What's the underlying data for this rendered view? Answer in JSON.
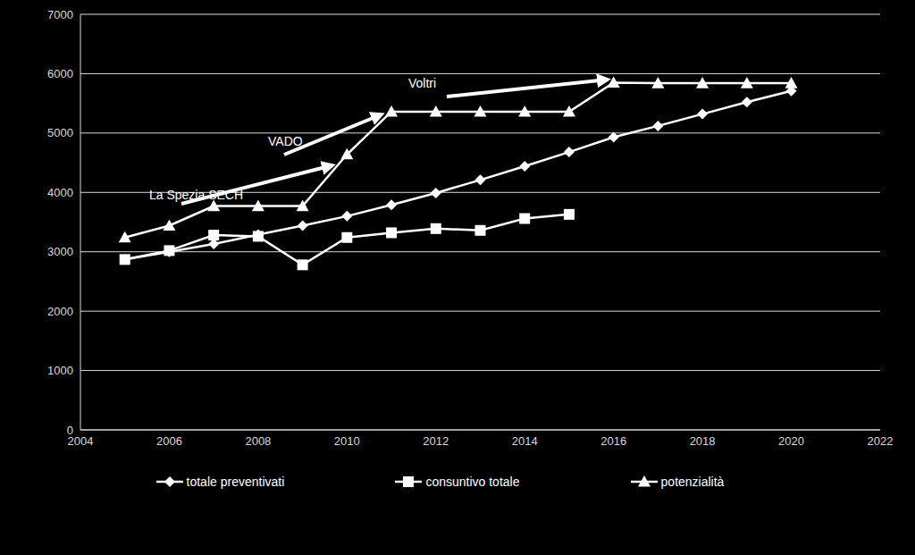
{
  "chart_data": {
    "type": "line",
    "x": [
      2005,
      2006,
      2007,
      2008,
      2009,
      2010,
      2011,
      2012,
      2013,
      2014,
      2015,
      2016,
      2017,
      2018,
      2019,
      2020
    ],
    "series": [
      {
        "name": "totale preventivati",
        "color": "#ffffff",
        "marker": "diamond",
        "values": [
          2870,
          3000,
          3130,
          3290,
          3440,
          3600,
          3790,
          3990,
          4210,
          4440,
          4680,
          4930,
          5120,
          5320,
          5520,
          5710
        ]
      },
      {
        "name": "consuntivo totale",
        "color": "#ffffff",
        "marker": "square",
        "values": [
          2870,
          3020,
          3280,
          3260,
          2780,
          3240,
          3320,
          3390,
          3360,
          3560,
          3630,
          null,
          null,
          null,
          null,
          null
        ]
      },
      {
        "name": "potenzialità",
        "color": "#ffffff",
        "marker": "triangle",
        "values": [
          3240,
          3440,
          3770,
          3770,
          3770,
          4640,
          5360,
          5360,
          5360,
          5360,
          5360,
          5850,
          5840,
          5840,
          5840,
          5840
        ]
      }
    ],
    "xlim": [
      2004,
      2022
    ],
    "xticks": [
      2004,
      2006,
      2008,
      2010,
      2012,
      2014,
      2016,
      2018,
      2020,
      2022
    ],
    "ylim": [
      0,
      7000
    ],
    "yticks": [
      0,
      1000,
      2000,
      3000,
      4000,
      5000,
      6000,
      7000
    ],
    "grid": true,
    "legend": "bottom",
    "annotations": [
      "La Spezia SECH",
      "VADO",
      "Voltri"
    ]
  }
}
